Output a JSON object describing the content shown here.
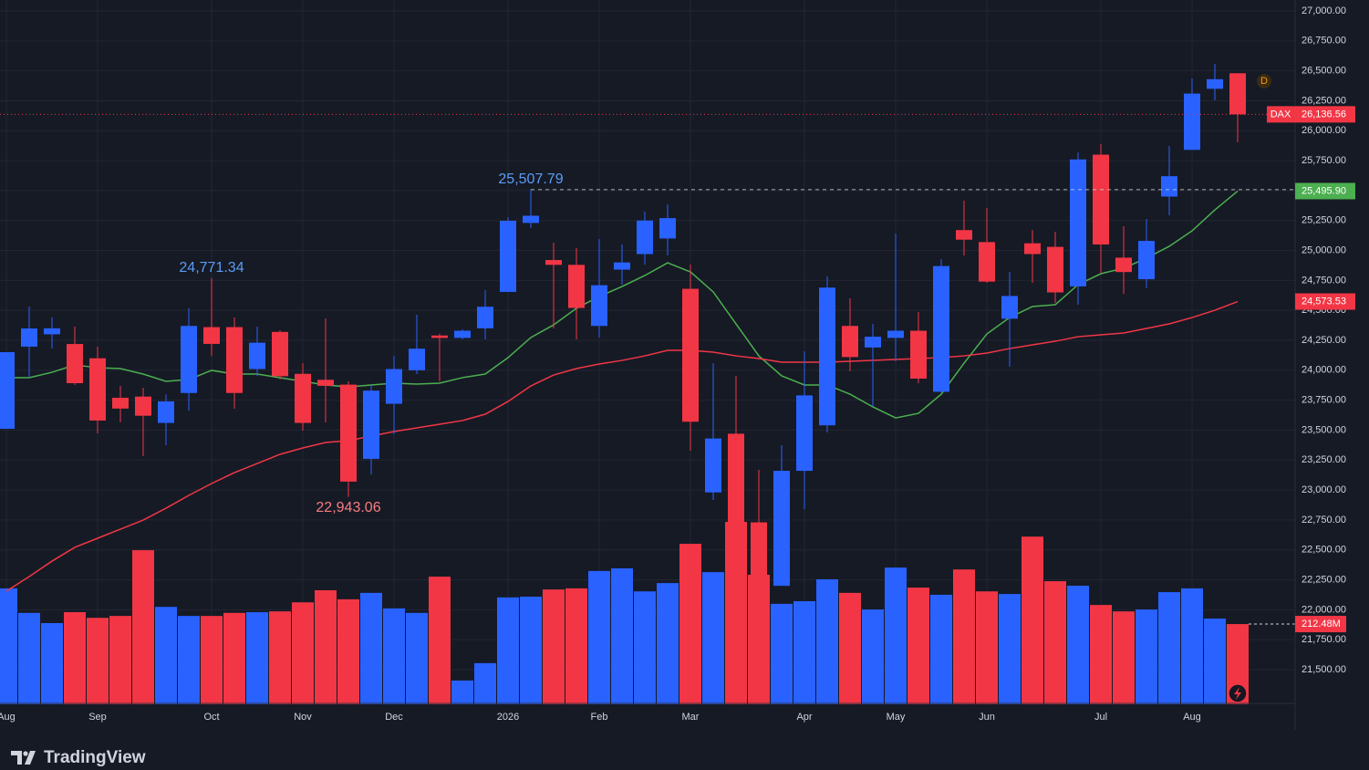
{
  "chart_data": {
    "type": "candlestick",
    "symbol": "DAX",
    "interval_marker": "D",
    "brand": "TradingView",
    "up_color": "#2962ff",
    "down_color": "#f23645",
    "grid": true,
    "categories": [
      "Aug",
      null,
      null,
      null,
      "Sep",
      null,
      null,
      null,
      null,
      "Oct",
      null,
      null,
      null,
      "Nov",
      null,
      null,
      null,
      "Dec",
      null,
      null,
      null,
      null,
      "2026",
      null,
      null,
      null,
      "Feb",
      null,
      null,
      null,
      "Mar",
      null,
      null,
      null,
      null,
      "Apr",
      null,
      null,
      null,
      "May",
      null,
      null,
      null,
      "Jun",
      null,
      null,
      null,
      null,
      "Jul",
      null,
      null,
      null,
      "Aug",
      null,
      null
    ],
    "open": [
      23511,
      24197,
      24300,
      24219,
      24100,
      23770,
      23780,
      23560,
      23810,
      24360,
      24360,
      24010,
      24320,
      23970,
      23920,
      23880,
      23260,
      23720,
      24000,
      24290,
      24270,
      24350,
      24654,
      25230,
      24920,
      24880,
      24370,
      24840,
      24970,
      25100,
      24680,
      22980,
      23470,
      22730,
      22200,
      23160,
      23540,
      24370,
      24190,
      24270,
      24330,
      23820,
      25170,
      25070,
      24430,
      25060,
      25030,
      24700,
      25800,
      24940,
      24760,
      25450,
      25840,
      26350,
      26480
    ],
    "high": [
      24151,
      24532,
      24440,
      24364,
      24197,
      23869,
      23854,
      23800,
      24517,
      24771.34,
      24440,
      24364,
      24334,
      24059,
      24433,
      23907,
      23877,
      24120,
      24463,
      24304,
      24341,
      24669,
      25278,
      25507.79,
      25065,
      25019,
      25096,
      25050,
      25324,
      25385,
      24882,
      24059,
      23953,
      23168,
      23374,
      24159,
      24783,
      24600,
      24387,
      25141,
      24486,
      24928,
      25416,
      25355,
      24821,
      25171,
      25156,
      25819,
      25888,
      25202,
      25263,
      25873,
      26436,
      26558,
      26482
    ],
    "low": [
      23511,
      23938,
      24181,
      23877,
      23473,
      23564,
      23283,
      23374,
      23663,
      24120,
      23679,
      23953,
      23922,
      23496,
      23564,
      22943.06,
      23130,
      23465,
      23968,
      23907,
      24258,
      24258,
      24654,
      25187,
      24349,
      24258,
      24273,
      24715,
      24882,
      24958,
      23328,
      22917,
      22140,
      22100,
      22200,
      22840,
      23480,
      23991,
      23701,
      24075,
      23892,
      23816,
      24958,
      24730,
      24029,
      24730,
      24562,
      24547,
      24806,
      24638,
      24684,
      25294,
      25842,
      26253,
      25903
    ],
    "close": [
      24151,
      24349,
      24350,
      23892,
      23580,
      23680,
      23620,
      23740,
      24370,
      24220,
      23810,
      24230,
      23950,
      23560,
      23870,
      23070,
      23830,
      24010,
      24180,
      24270,
      24330,
      24530,
      25248,
      25290,
      24880,
      24520,
      24710,
      24900,
      25250,
      25270,
      23570,
      23430,
      22730,
      22290,
      23160,
      23790,
      24690,
      24110,
      24280,
      24330,
      23930,
      24870,
      25090,
      24740,
      24620,
      24970,
      24650,
      25760,
      25050,
      24820,
      25080,
      25620,
      26310,
      26430,
      26136.56
    ],
    "volume": [
      307,
      242,
      215,
      244,
      229,
      234,
      408,
      258,
      234,
      234,
      242,
      244,
      246,
      270,
      302,
      278,
      295,
      254,
      242,
      338,
      63,
      109,
      283,
      285,
      304,
      307,
      353,
      360,
      299,
      321,
      425,
      350,
      483,
      343,
      266,
      273,
      331,
      295,
      251,
      362,
      309,
      290,
      357,
      299,
      292,
      444,
      326,
      314,
      263,
      246,
      251,
      297,
      307,
      227,
      212.48
    ],
    "series": [
      {
        "color": "#4caf50",
        "values": [
          23938,
          23938,
          23983,
          24044,
          24021,
          24014,
          23968,
          23907,
          23922,
          23999,
          23968,
          23968,
          23938,
          23907,
          23877,
          23861,
          23877,
          23892,
          23884,
          23892,
          23938,
          23968,
          24105,
          24273,
          24379,
          24517,
          24616,
          24699,
          24791,
          24897,
          24821,
          24654,
          24387,
          24120,
          23953,
          23877,
          23877,
          23800,
          23694,
          23602,
          23640,
          23800,
          24059,
          24303,
          24440,
          24532,
          24547,
          24715,
          24806,
          24852,
          24936,
          25035,
          25164,
          25339,
          25495.9
        ]
      },
      {
        "color": "#f23645",
        "values": [
          22155,
          22277,
          22406,
          22521,
          22597,
          22673,
          22749,
          22848,
          22955,
          23054,
          23145,
          23221,
          23298,
          23351,
          23397,
          23412,
          23450,
          23488,
          23519,
          23549,
          23580,
          23633,
          23739,
          23869,
          23960,
          24014,
          24052,
          24082,
          24120,
          24166,
          24166,
          24151,
          24120,
          24098,
          24067,
          24067,
          24067,
          24075,
          24082,
          24090,
          24098,
          24105,
          24120,
          24143,
          24181,
          24212,
          24242,
          24280,
          24296,
          24311,
          24349,
          24387,
          24440,
          24501,
          24573.53
        ]
      }
    ],
    "last_labels": {
      "close": "26,136.56",
      "series0": "25,495.90",
      "series1": "24,573.53",
      "volume": "212.48M"
    },
    "annotations": [
      {
        "value": 24771.34,
        "label": "24,771.34"
      },
      {
        "value": 25507.79,
        "label": "25,507.79"
      },
      {
        "value": 22943.06,
        "label": "22,943.06"
      }
    ],
    "ylim": [
      21500,
      27000
    ],
    "yticks": [
      {
        "value": 21500,
        "label": "21,500.00"
      },
      {
        "value": 21750,
        "label": "21,750.00"
      },
      {
        "value": 22000,
        "label": "22,000.00"
      },
      {
        "value": 22250,
        "label": "22,250.00"
      },
      {
        "value": 22500,
        "label": "22,500.00"
      },
      {
        "value": 22750,
        "label": "22,750.00"
      },
      {
        "value": 23000,
        "label": "23,000.00"
      },
      {
        "value": 23250,
        "label": "23,250.00"
      },
      {
        "value": 23500,
        "label": "23,500.00"
      },
      {
        "value": 23750,
        "label": "23,750.00"
      },
      {
        "value": 24000,
        "label": "24,000.00"
      },
      {
        "value": 24250,
        "label": "24,250.00"
      },
      {
        "value": 24500,
        "label": "24,500.00"
      },
      {
        "value": 24750,
        "label": "24,750.00"
      },
      {
        "value": 25000,
        "label": "25,000.00"
      },
      {
        "value": 25250,
        "label": "25,250.00"
      },
      {
        "value": 25500,
        "label": "25,500.00"
      },
      {
        "value": 25750,
        "label": "25,750.00"
      },
      {
        "value": 26000,
        "label": "26,000.00"
      },
      {
        "value": 26250,
        "label": "26,250.00"
      },
      {
        "value": 26500,
        "label": "26,500.00"
      },
      {
        "value": 26750,
        "label": "26,750.00"
      },
      {
        "value": 27000,
        "label": "27,000.00"
      }
    ]
  }
}
